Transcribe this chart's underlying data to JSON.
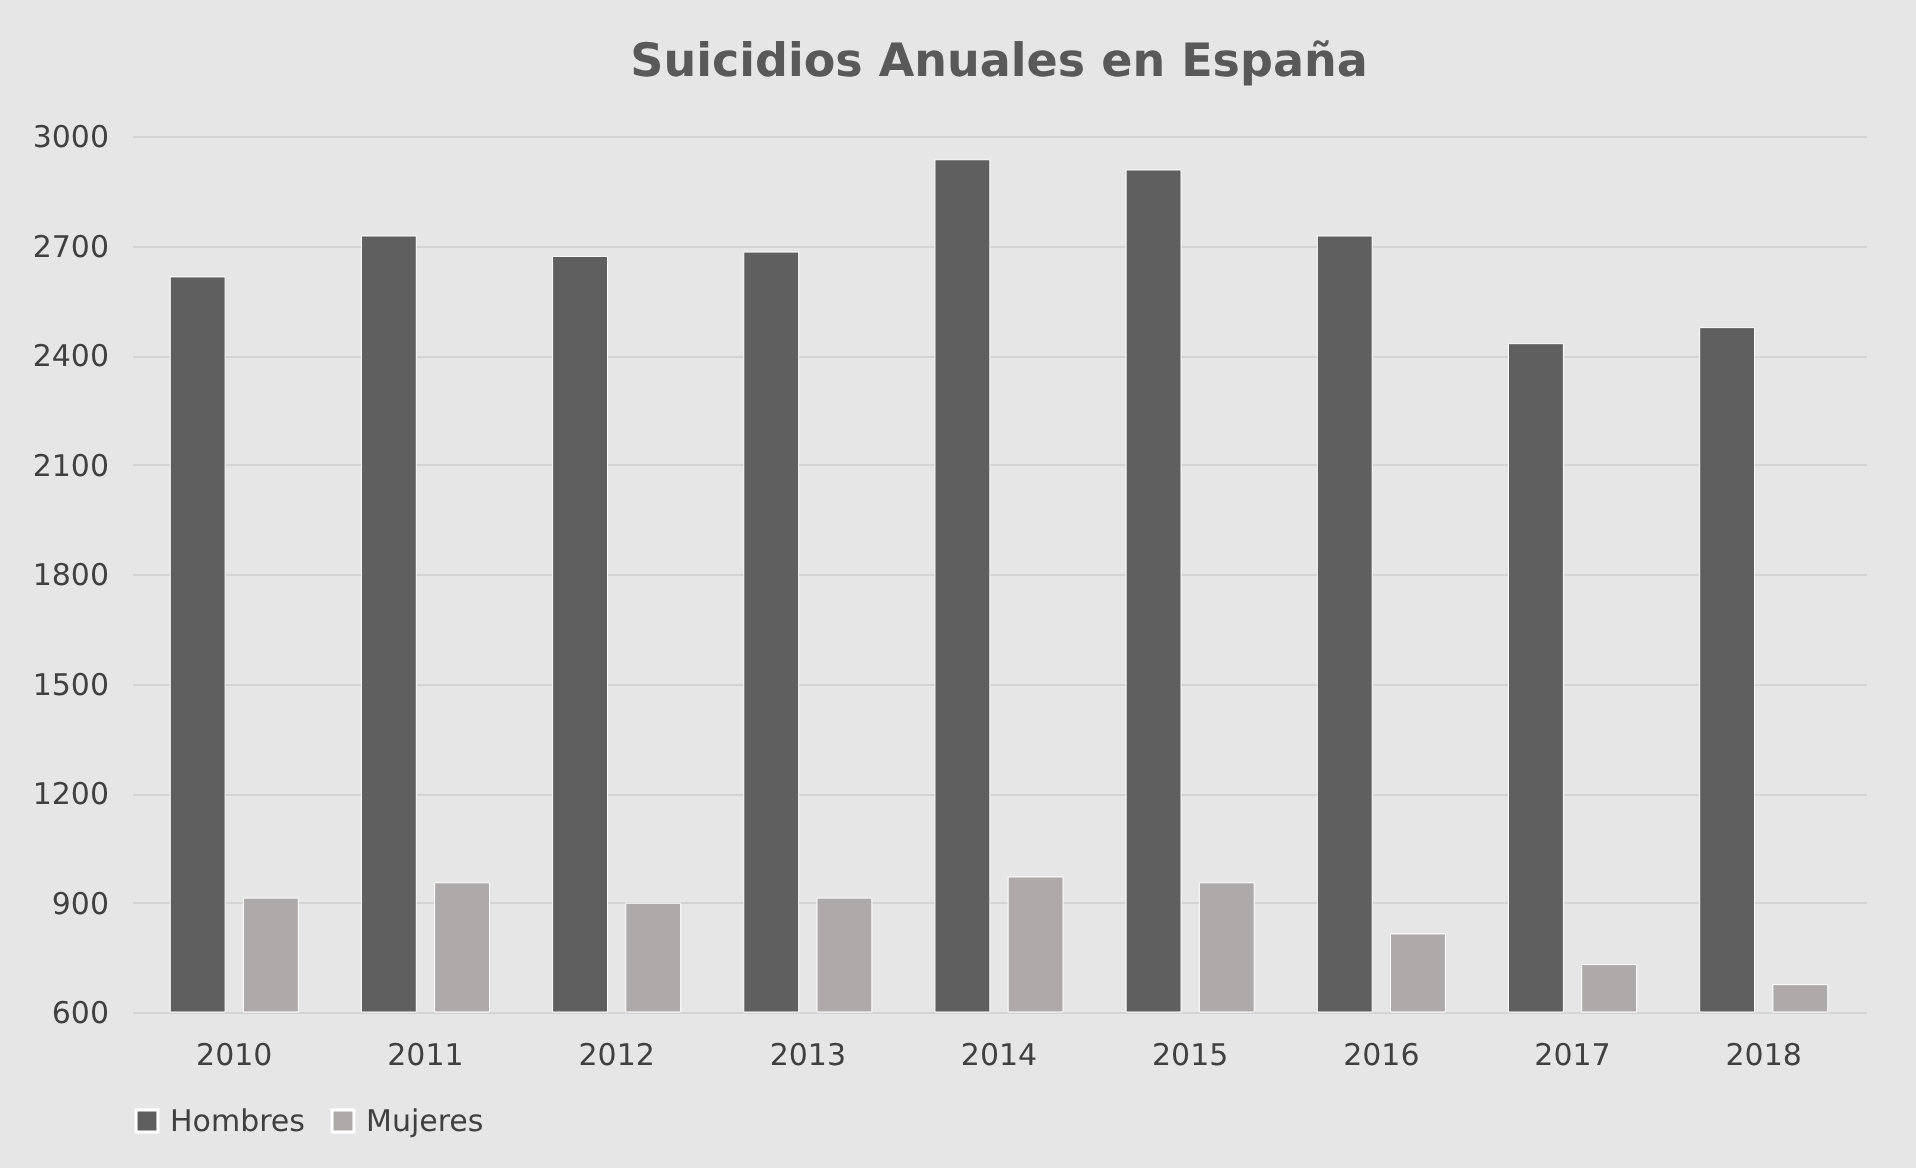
{
  "chart_data": {
    "type": "bar",
    "title": "Suicidios Anuales en España",
    "categories": [
      "2010",
      "2011",
      "2012",
      "2013",
      "2014",
      "2015",
      "2016",
      "2017",
      "2018"
    ],
    "series": [
      {
        "name": "Hombres",
        "color": "#5f5f5f",
        "values": [
          2614,
          2726,
          2670,
          2682,
          2935,
          2907,
          2726,
          2431,
          2475
        ]
      },
      {
        "name": "Mujeres",
        "color": "#aeaaaa",
        "values": [
          912,
          954,
          898,
          912,
          970,
          954,
          814,
          730,
          675
        ]
      }
    ],
    "ylim": [
      600,
      3000
    ],
    "yticks": [
      600,
      900,
      1200,
      1500,
      1800,
      2100,
      2400,
      2700,
      3000
    ],
    "grid": "y",
    "legend": "bottom"
  }
}
